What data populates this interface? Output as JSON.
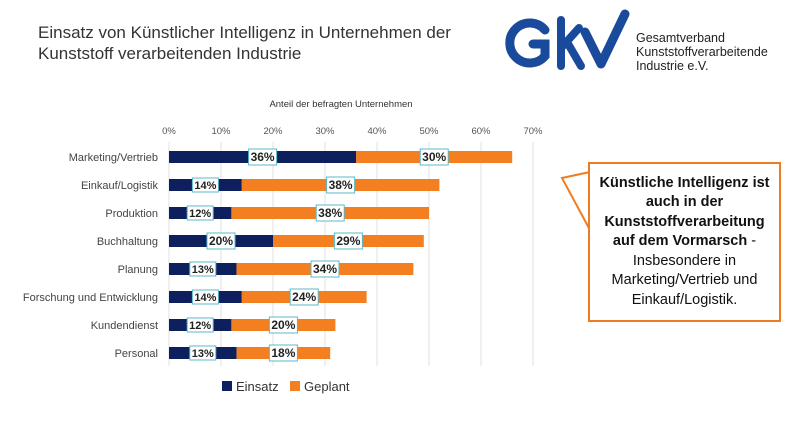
{
  "title": "Einsatz von Künstlicher Intelligenz in Unternehmen der Kunststoff verarbeitenden Industrie",
  "logo": {
    "mark": "GKV",
    "text": [
      "Gesamtverband",
      "Kunststoffverarbeitende",
      "Industrie e.V."
    ]
  },
  "callout": {
    "bold": "Künstliche Intelligenz ist auch in der Kunststoffverarbeitung auf dem Vormarsch",
    "normal": " - Insbesondere in Marketing/Vertrieb und Einkauf/Logistik."
  },
  "chart_data": {
    "type": "bar",
    "stacked": true,
    "orientation": "horizontal",
    "xlabel": "Anteil der befragten Unternehmen",
    "xlim": [
      0,
      70
    ],
    "xticks": [
      "0%",
      "10%",
      "20%",
      "30%",
      "40%",
      "50%",
      "60%",
      "70%"
    ],
    "grid": true,
    "legend_position": "bottom",
    "categories": [
      "Marketing/Vertrieb",
      "Einkauf/Logistik",
      "Produktion",
      "Buchhaltung",
      "Planung",
      "Forschung und Entwicklung",
      "Kundendienst",
      "Personal"
    ],
    "series": [
      {
        "name": "Einsatz",
        "color": "#0d1f5c",
        "values": [
          36,
          14,
          12,
          20,
          13,
          14,
          12,
          13
        ]
      },
      {
        "name": "Geplant",
        "color": "#f47f20",
        "values": [
          30,
          38,
          38,
          29,
          34,
          24,
          20,
          18
        ]
      }
    ]
  }
}
